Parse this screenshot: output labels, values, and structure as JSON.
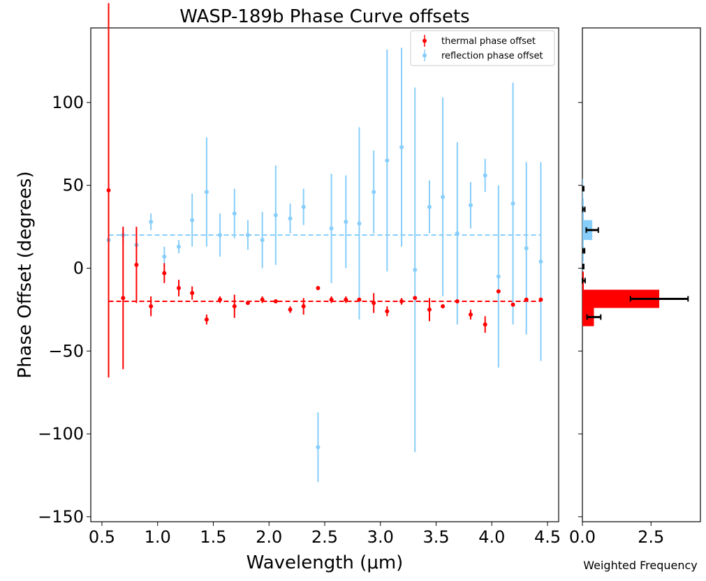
{
  "chart_data": [
    {
      "type": "scatter",
      "title": "WASP-189b Phase Curve offsets",
      "xlabel": "Wavelength (μm)",
      "ylabel": "Phase Offset (degrees)",
      "xlim": [
        0.4,
        4.6
      ],
      "ylim": [
        -153,
        145
      ],
      "xticks": [
        0.5,
        1.0,
        1.5,
        2.0,
        2.5,
        3.0,
        3.5,
        4.0,
        4.5
      ],
      "xtick_labels": [
        "0.5",
        "1.0",
        "1.5",
        "2.0",
        "2.5",
        "3.0",
        "3.5",
        "4.0",
        "4.5"
      ],
      "yticks": [
        -150,
        -100,
        -50,
        0,
        50,
        100
      ],
      "ytick_labels": [
        "−150",
        "−100",
        "−50",
        "0",
        "50",
        "100"
      ],
      "legend": {
        "location": "upper right",
        "entries": [
          "thermal phase offset",
          "reflection phase offset"
        ]
      },
      "colors": {
        "thermal": "#ff0000",
        "reflection": "#87cefa"
      },
      "series": [
        {
          "name": "thermal phase offset",
          "x": [
            0.56,
            0.69,
            0.81,
            0.94,
            1.06,
            1.19,
            1.31,
            1.44,
            1.56,
            1.69,
            1.81,
            1.94,
            2.06,
            2.19,
            2.31,
            2.44,
            2.56,
            2.69,
            2.81,
            2.94,
            3.06,
            3.19,
            3.31,
            3.44,
            3.56,
            3.69,
            3.81,
            3.94,
            4.06,
            4.19,
            4.31,
            4.44
          ],
          "y": [
            47,
            -18,
            2,
            -23,
            -3,
            -12,
            -15,
            -31,
            -19,
            -23,
            -21,
            -19,
            -20,
            -25,
            -23,
            -12,
            -19,
            -19,
            -19,
            -21,
            -26,
            -20,
            -18,
            -25,
            -23,
            -20,
            -28,
            -34,
            -14,
            -22,
            -19,
            -19
          ],
          "yerr": [
            113,
            43,
            23,
            6,
            6,
            5,
            4,
            3,
            2,
            7,
            1,
            2,
            1,
            2,
            5,
            1,
            2,
            2,
            1,
            6,
            3,
            2,
            1,
            7,
            1,
            1,
            3,
            5,
            1,
            1,
            1,
            1
          ],
          "reference_line": -20
        },
        {
          "name": "reflection phase offset",
          "x": [
            0.56,
            0.69,
            0.81,
            0.94,
            1.06,
            1.19,
            1.31,
            1.44,
            1.56,
            1.69,
            1.81,
            1.94,
            2.06,
            2.19,
            2.31,
            2.44,
            2.56,
            2.69,
            2.81,
            2.94,
            3.06,
            3.19,
            3.31,
            3.44,
            3.56,
            3.69,
            3.81,
            3.94,
            4.06,
            4.19,
            4.31,
            4.44
          ],
          "y": [
            17,
            20,
            14,
            28,
            7,
            13,
            29,
            46,
            20,
            33,
            20,
            17,
            32,
            30,
            37,
            -108,
            24,
            28,
            27,
            46,
            65,
            73,
            -1,
            37,
            43,
            21,
            38,
            56,
            -5,
            39,
            12,
            4
          ],
          "yerr": [
            1,
            5,
            3,
            5,
            6,
            4,
            16,
            33,
            13,
            15,
            9,
            17,
            30,
            9,
            11,
            21,
            33,
            28,
            58,
            25,
            67,
            60,
            110,
            16,
            60,
            55,
            14,
            10,
            55,
            73,
            52,
            60
          ],
          "reference_line": 20
        }
      ]
    },
    {
      "type": "bar",
      "orientation": "horizontal",
      "xlabel": "Weighted Frequency",
      "xlim": [
        0,
        4.3
      ],
      "xticks": [
        0.0,
        2.5
      ],
      "xtick_labels": [
        "0.0",
        "2.5"
      ],
      "ylim": [
        -153,
        145
      ],
      "shared_y_axis": true,
      "series": [
        {
          "name": "thermal phase offset",
          "color": "#ff0000",
          "bins": [
            [
              -35,
              -24
            ],
            [
              -24,
              -13
            ],
            [
              -13,
              -2
            ]
          ],
          "values": [
            0.42,
            2.8,
            0.05
          ],
          "errors": [
            0.25,
            1.05,
            0.05
          ]
        },
        {
          "name": "reflection phase offset",
          "color": "#87cefa",
          "bins": [
            [
              -2,
              4
            ],
            [
              4,
              17
            ],
            [
              17,
              29
            ],
            [
              29,
              42
            ],
            [
              42,
              54
            ]
          ],
          "values": [
            0.03,
            0.05,
            0.36,
            0.05,
            0.03
          ],
          "errors": [
            0.02,
            0.03,
            0.22,
            0.04,
            0.02
          ]
        }
      ]
    }
  ]
}
